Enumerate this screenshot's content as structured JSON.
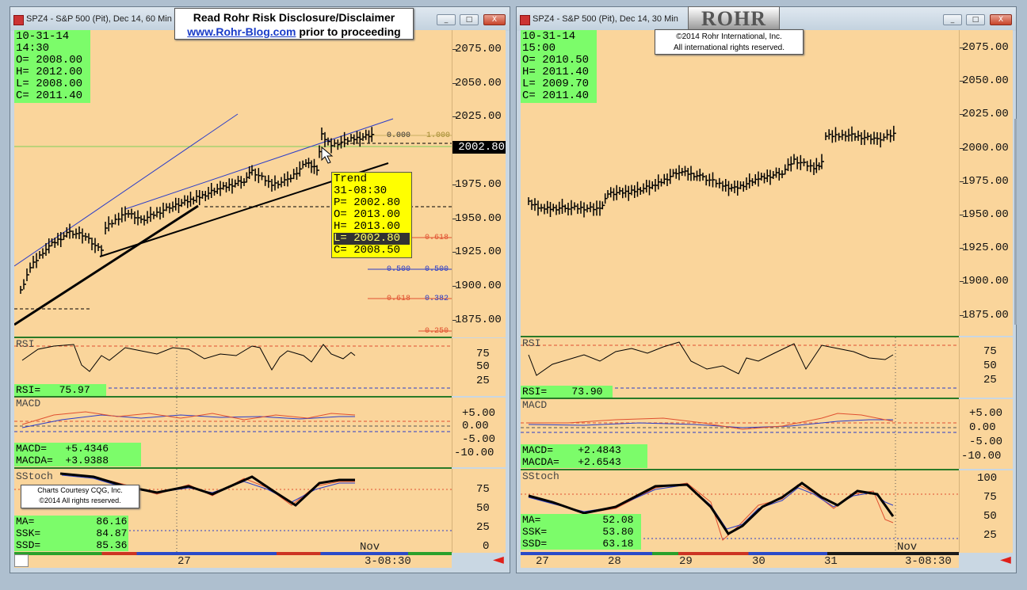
{
  "left_window": {
    "title": "SPZ4 - S&P 500 (Pit), Dec 14, 60 Min",
    "ohlc": {
      "date": "10-31-14",
      "time": "14:30",
      "o": "O= 2008.00",
      "h": "H= 2012.00",
      "l": "L= 2008.00",
      "c": "C= 2011.40"
    },
    "price_ticks": [
      "2075.00",
      "2050.00",
      "2025.00",
      "2000.00",
      "1975.00",
      "1950.00",
      "1925.00",
      "1900.00",
      "1875.00"
    ],
    "price_tag": "2002.80",
    "trend_box": {
      "title": "Trend",
      "date": "31-08:30",
      "p": "P= 2002.80",
      "o": "O= 2013.00",
      "h": "H= 2013.00",
      "l": "L= 2002.80",
      "c": "C= 2008.50"
    },
    "fib_labels": {
      "a": "0.000",
      "b": "1.000",
      "c": "0.618",
      "d": "0.500",
      "e": "0.500",
      "f": "0.618",
      "g": "0.382",
      "h": "0.250"
    },
    "rsi": {
      "title": "RSI",
      "value": "RSI=   75.97",
      "ticks": [
        "75",
        "50",
        "25"
      ]
    },
    "macd": {
      "title": "MACD",
      "macd": "MACD=   +5.4346",
      "macda": "MACDA=  +3.9388",
      "ticks": [
        "+5.00",
        "0.00",
        "-5.00",
        "-10.00"
      ]
    },
    "sstoch": {
      "title": "SStoch",
      "ma": "MA=          86.16",
      "ssk": "SSK=         84.87",
      "ssd": "SSD=         85.36",
      "ticks": [
        "75",
        "50",
        "25",
        "0"
      ]
    },
    "xaxis": {
      "day": "27",
      "month": "Nov",
      "last": "3-08:30"
    }
  },
  "right_window": {
    "title": "SPZ4 - S&P 500 (Pit), Dec 14, 30 Min",
    "ohlc": {
      "date": "10-31-14",
      "time": "15:00",
      "o": "O= 2010.50",
      "h": "H= 2011.40",
      "l": "L= 2009.70",
      "c": "C= 2011.40"
    },
    "price_ticks": [
      "2075.00",
      "2050.00",
      "2025.00",
      "2000.00",
      "1975.00",
      "1950.00",
      "1925.00",
      "1900.00",
      "1875.00"
    ],
    "rsi": {
      "title": "RSI",
      "value": "RSI=    73.90",
      "ticks": [
        "75",
        "50",
        "25"
      ]
    },
    "macd": {
      "title": "MACD",
      "macd": "MACD=    +2.4843",
      "macda": "MACDA=   +2.6543",
      "ticks": [
        "+5.00",
        "0.00",
        "-5.00",
        "-10.00"
      ]
    },
    "sstoch": {
      "title": "SStoch",
      "ma": "MA=          52.08",
      "ssk": "SSK=         53.80",
      "ssd": "SSD=         63.18",
      "ticks": [
        "100",
        "75",
        "50",
        "25"
      ]
    },
    "xaxis": {
      "d1": "27",
      "d2": "28",
      "d3": "29",
      "d4": "30",
      "d5": "31",
      "month": "Nov",
      "last": "3-08:30"
    }
  },
  "disclaimer": {
    "line1": "Read Rohr Risk Disclosure/Disclaimer",
    "link": "www.Rohr-Blog.com",
    "line2_rest": "prior to proceeding"
  },
  "copyright_rohr": {
    "line1": "©2014  Rohr International, Inc.",
    "line2": "All international rights reserved."
  },
  "cqg_credit": {
    "line1": "Charts Courtesy CQG, Inc.",
    "line2": "©2014 All rights reserved."
  },
  "logo_text": "ROHR",
  "window_buttons": {
    "min": "_",
    "max": "□",
    "close": "X"
  },
  "colors": {
    "panel_bg": "#fad59b",
    "label_green": "#7cfc6a",
    "divider": "#2a7a28",
    "trend_yellow": "#ffff00"
  }
}
